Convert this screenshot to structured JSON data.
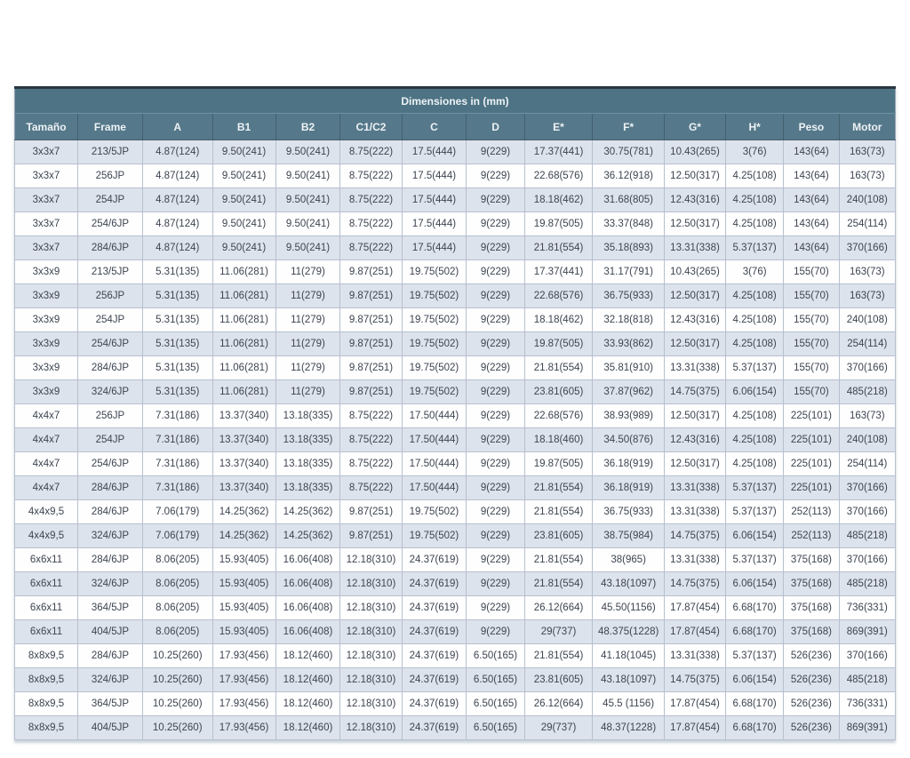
{
  "table": {
    "title": "Dimensiones in (mm)",
    "columns": [
      "Tamaño",
      "Frame",
      "A",
      "B1",
      "B2",
      "C1/C2",
      "C",
      "D",
      "E*",
      "F*",
      "G*",
      "H*",
      "Peso",
      "Motor"
    ],
    "rows": [
      [
        "3x3x7",
        "213/5JP",
        "4.87(124)",
        "9.50(241)",
        "9.50(241)",
        "8.75(222)",
        "17.5(444)",
        "9(229)",
        "17.37(441)",
        "30.75(781)",
        "10.43(265)",
        "3(76)",
        "143(64)",
        "163(73)"
      ],
      [
        "3x3x7",
        "256JP",
        "4.87(124)",
        "9.50(241)",
        "9.50(241)",
        "8.75(222)",
        "17.5(444)",
        "9(229)",
        "22.68(576)",
        "36.12(918)",
        "12.50(317)",
        "4.25(108)",
        "143(64)",
        "163(73)"
      ],
      [
        "3x3x7",
        "254JP",
        "4.87(124)",
        "9.50(241)",
        "9.50(241)",
        "8.75(222)",
        "17.5(444)",
        "9(229)",
        "18.18(462)",
        "31.68(805)",
        "12.43(316)",
        "4.25(108)",
        "143(64)",
        "240(108)"
      ],
      [
        "3x3x7",
        "254/6JP",
        "4.87(124)",
        "9.50(241)",
        "9.50(241)",
        "8.75(222)",
        "17.5(444)",
        "9(229)",
        "19.87(505)",
        "33.37(848)",
        "12.50(317)",
        "4.25(108)",
        "143(64)",
        "254(114)"
      ],
      [
        "3x3x7",
        "284/6JP",
        "4.87(124)",
        "9.50(241)",
        "9.50(241)",
        "8.75(222)",
        "17.5(444)",
        "9(229)",
        "21.81(554)",
        "35.18(893)",
        "13.31(338)",
        "5.37(137)",
        "143(64)",
        "370(166)"
      ],
      [
        "3x3x9",
        "213/5JP",
        "5.31(135)",
        "11.06(281)",
        "11(279)",
        "9.87(251)",
        "19.75(502)",
        "9(229)",
        "17.37(441)",
        "31.17(791)",
        "10.43(265)",
        "3(76)",
        "155(70)",
        "163(73)"
      ],
      [
        "3x3x9",
        "256JP",
        "5.31(135)",
        "11.06(281)",
        "11(279)",
        "9.87(251)",
        "19.75(502)",
        "9(229)",
        "22.68(576)",
        "36.75(933)",
        "12.50(317)",
        "4.25(108)",
        "155(70)",
        "163(73)"
      ],
      [
        "3x3x9",
        "254JP",
        "5.31(135)",
        "11.06(281)",
        "11(279)",
        "9.87(251)",
        "19.75(502)",
        "9(229)",
        "18.18(462)",
        "32.18(818)",
        "12.43(316)",
        "4.25(108)",
        "155(70)",
        "240(108)"
      ],
      [
        "3x3x9",
        "254/6JP",
        "5.31(135)",
        "11.06(281)",
        "11(279)",
        "9.87(251)",
        "19.75(502)",
        "9(229)",
        "19.87(505)",
        "33.93(862)",
        "12.50(317)",
        "4.25(108)",
        "155(70)",
        "254(114)"
      ],
      [
        "3x3x9",
        "284/6JP",
        "5.31(135)",
        "11.06(281)",
        "11(279)",
        "9.87(251)",
        "19.75(502)",
        "9(229)",
        "21.81(554)",
        "35.81(910)",
        "13.31(338)",
        "5.37(137)",
        "155(70)",
        "370(166)"
      ],
      [
        "3x3x9",
        "324/6JP",
        "5.31(135)",
        "11.06(281)",
        "11(279)",
        "9.87(251)",
        "19.75(502)",
        "9(229)",
        "23.81(605)",
        "37.87(962)",
        "14.75(375)",
        "6.06(154)",
        "155(70)",
        "485(218)"
      ],
      [
        "4x4x7",
        "256JP",
        "7.31(186)",
        "13.37(340)",
        "13.18(335)",
        "8.75(222)",
        "17.50(444)",
        "9(229)",
        "22.68(576)",
        "38.93(989)",
        "12.50(317)",
        "4.25(108)",
        "225(101)",
        "163(73)"
      ],
      [
        "4x4x7",
        "254JP",
        "7.31(186)",
        "13.37(340)",
        "13.18(335)",
        "8.75(222)",
        "17.50(444)",
        "9(229)",
        "18.18(460)",
        "34.50(876)",
        "12.43(316)",
        "4.25(108)",
        "225(101)",
        "240(108)"
      ],
      [
        "4x4x7",
        "254/6JP",
        "7.31(186)",
        "13.37(340)",
        "13.18(335)",
        "8.75(222)",
        "17.50(444)",
        "9(229)",
        "19.87(505)",
        "36.18(919)",
        "12.50(317)",
        "4.25(108)",
        "225(101)",
        "254(114)"
      ],
      [
        "4x4x7",
        "284/6JP",
        "7.31(186)",
        "13.37(340)",
        "13.18(335)",
        "8.75(222)",
        "17.50(444)",
        "9(229)",
        "21.81(554)",
        "36.18(919)",
        "13.31(338)",
        "5.37(137)",
        "225(101)",
        "370(166)"
      ],
      [
        "4x4x9,5",
        "284/6JP",
        "7.06(179)",
        "14.25(362)",
        "14.25(362)",
        "9.87(251)",
        "19.75(502)",
        "9(229)",
        "21.81(554)",
        "36.75(933)",
        "13.31(338)",
        "5.37(137)",
        "252(113)",
        "370(166)"
      ],
      [
        "4x4x9,5",
        "324/6JP",
        "7.06(179)",
        "14.25(362)",
        "14.25(362)",
        "9.87(251)",
        "19.75(502)",
        "9(229)",
        "23.81(605)",
        "38.75(984)",
        "14.75(375)",
        "6.06(154)",
        "252(113)",
        "485(218)"
      ],
      [
        "6x6x11",
        "284/6JP",
        "8.06(205)",
        "15.93(405)",
        "16.06(408)",
        "12.18(310)",
        "24.37(619)",
        "9(229)",
        "21.81(554)",
        "38(965)",
        "13.31(338)",
        "5.37(137)",
        "375(168)",
        "370(166)"
      ],
      [
        "6x6x11",
        "324/6JP",
        "8.06(205)",
        "15.93(405)",
        "16.06(408)",
        "12.18(310)",
        "24.37(619)",
        "9(229)",
        "21.81(554)",
        "43.18(1097)",
        "14.75(375)",
        "6.06(154)",
        "375(168)",
        "485(218)"
      ],
      [
        "6x6x11",
        "364/5JP",
        "8.06(205)",
        "15.93(405)",
        "16.06(408)",
        "12.18(310)",
        "24.37(619)",
        "9(229)",
        "26.12(664)",
        "45.50(1156)",
        "17.87(454)",
        "6.68(170)",
        "375(168)",
        "736(331)"
      ],
      [
        "6x6x11",
        "404/5JP",
        "8.06(205)",
        "15.93(405)",
        "16.06(408)",
        "12.18(310)",
        "24.37(619)",
        "9(229)",
        "29(737)",
        "48.375(1228)",
        "17.87(454)",
        "6.68(170)",
        "375(168)",
        "869(391)"
      ],
      [
        "8x8x9,5",
        "284/6JP",
        "10.25(260)",
        "17.93(456)",
        "18.12(460)",
        "12.18(310)",
        "24.37(619)",
        "6.50(165)",
        "21.81(554)",
        "41.18(1045)",
        "13.31(338)",
        "5.37(137)",
        "526(236)",
        "370(166)"
      ],
      [
        "8x8x9,5",
        "324/6JP",
        "10.25(260)",
        "17.93(456)",
        "18.12(460)",
        "12.18(310)",
        "24.37(619)",
        "6.50(165)",
        "23.81(605)",
        "43.18(1097)",
        "14.75(375)",
        "6.06(154)",
        "526(236)",
        "485(218)"
      ],
      [
        "8x8x9,5",
        "364/5JP",
        "10.25(260)",
        "17.93(456)",
        "18.12(460)",
        "12.18(310)",
        "24.37(619)",
        "6.50(165)",
        "26.12(664)",
        "45.5 (1156)",
        "17.87(454)",
        "6.68(170)",
        "526(236)",
        "736(331)"
      ],
      [
        "8x8x9,5",
        "404/5JP",
        "10.25(260)",
        "17.93(456)",
        "18.12(460)",
        "12.18(310)",
        "24.37(619)",
        "6.50(165)",
        "29(737)",
        "48.37(1228)",
        "17.87(454)",
        "6.68(170)",
        "526(236)",
        "869(391)"
      ]
    ],
    "colors": {
      "title_bg": "#4d7384",
      "header_bg": "#55788a",
      "top_border": "#2a3642",
      "row_shaded": "#dde3ed",
      "row_white": "#fefefe",
      "grid_line": "#b6c0cd",
      "header_text": "#edf2f5",
      "cell_text": "#3d4450"
    }
  }
}
